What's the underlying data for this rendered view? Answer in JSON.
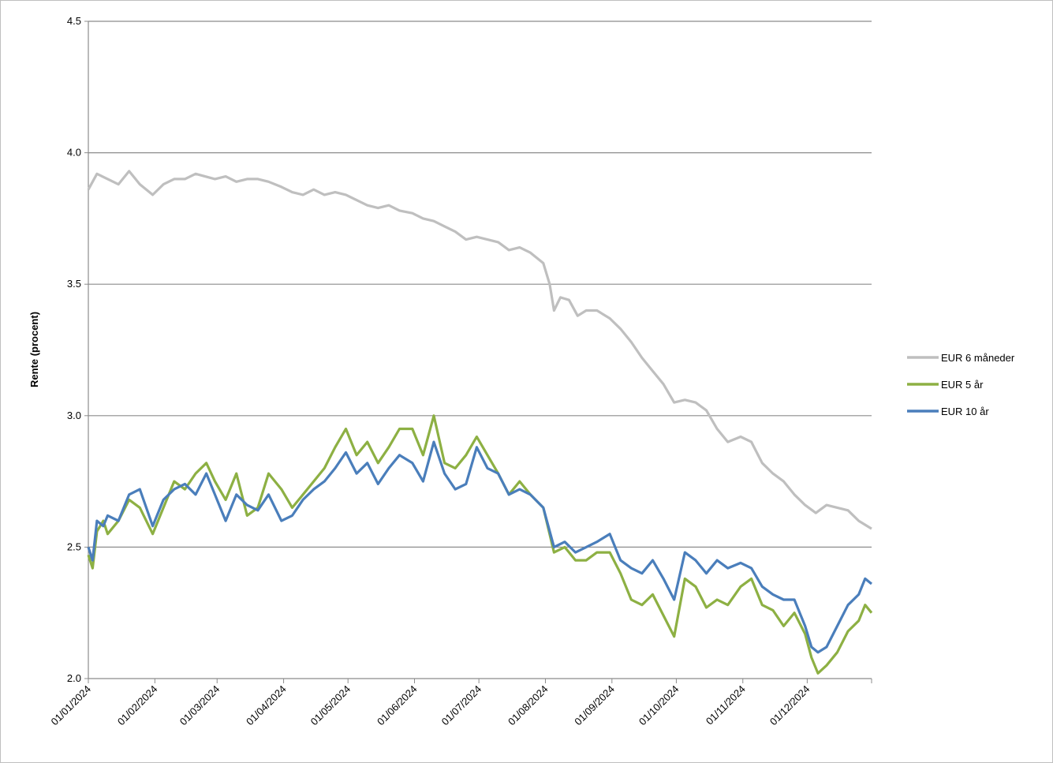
{
  "chart_data": {
    "type": "line",
    "title": "",
    "xlabel": "",
    "ylabel": "Rente (procent)",
    "ylim": [
      2.0,
      4.5
    ],
    "yticks": [
      "2.0",
      "2.5",
      "3.0",
      "3.5",
      "4.0",
      "4.5"
    ],
    "xlim": [
      "2024-01-01",
      "2024-12-31"
    ],
    "xticks": [
      "01/01/2024",
      "01/02/2024",
      "01/03/2024",
      "01/04/2024",
      "01/05/2024",
      "01/06/2024",
      "01/07/2024",
      "01/08/2024",
      "01/09/2024",
      "01/10/2024",
      "01/11/2024",
      "01/12/2024"
    ],
    "grid": "horizontal",
    "legend_position": "right",
    "series": [
      {
        "name": "EUR 6 måneder",
        "color": "#bfbfbf",
        "x": [
          "2024-01-01",
          "2024-01-05",
          "2024-01-10",
          "2024-01-15",
          "2024-01-20",
          "2024-01-25",
          "2024-01-31",
          "2024-02-05",
          "2024-02-10",
          "2024-02-15",
          "2024-02-20",
          "2024-02-29",
          "2024-03-05",
          "2024-03-10",
          "2024-03-15",
          "2024-03-20",
          "2024-03-25",
          "2024-03-31",
          "2024-04-05",
          "2024-04-10",
          "2024-04-15",
          "2024-04-20",
          "2024-04-25",
          "2024-04-30",
          "2024-05-05",
          "2024-05-10",
          "2024-05-15",
          "2024-05-20",
          "2024-05-25",
          "2024-05-31",
          "2024-06-05",
          "2024-06-10",
          "2024-06-15",
          "2024-06-20",
          "2024-06-25",
          "2024-06-30",
          "2024-07-05",
          "2024-07-10",
          "2024-07-15",
          "2024-07-20",
          "2024-07-25",
          "2024-07-31",
          "2024-08-03",
          "2024-08-05",
          "2024-08-08",
          "2024-08-12",
          "2024-08-16",
          "2024-08-20",
          "2024-08-25",
          "2024-08-31",
          "2024-09-05",
          "2024-09-10",
          "2024-09-15",
          "2024-09-20",
          "2024-09-25",
          "2024-09-30",
          "2024-10-05",
          "2024-10-10",
          "2024-10-15",
          "2024-10-20",
          "2024-10-25",
          "2024-10-31",
          "2024-11-05",
          "2024-11-10",
          "2024-11-15",
          "2024-11-20",
          "2024-11-25",
          "2024-11-30",
          "2024-12-05",
          "2024-12-10",
          "2024-12-15",
          "2024-12-20",
          "2024-12-25",
          "2024-12-31"
        ],
        "y": [
          3.86,
          3.92,
          3.9,
          3.88,
          3.93,
          3.88,
          3.84,
          3.88,
          3.9,
          3.9,
          3.92,
          3.9,
          3.91,
          3.89,
          3.9,
          3.9,
          3.89,
          3.87,
          3.85,
          3.84,
          3.86,
          3.84,
          3.85,
          3.84,
          3.82,
          3.8,
          3.79,
          3.8,
          3.78,
          3.77,
          3.75,
          3.74,
          3.72,
          3.7,
          3.67,
          3.68,
          3.67,
          3.66,
          3.63,
          3.64,
          3.62,
          3.58,
          3.5,
          3.4,
          3.45,
          3.44,
          3.38,
          3.4,
          3.4,
          3.37,
          3.33,
          3.28,
          3.22,
          3.17,
          3.12,
          3.05,
          3.06,
          3.05,
          3.02,
          2.95,
          2.9,
          2.92,
          2.9,
          2.82,
          2.78,
          2.75,
          2.7,
          2.66,
          2.63,
          2.66,
          2.65,
          2.64,
          2.6,
          2.57
        ]
      },
      {
        "name": "EUR 5 år",
        "color": "#8db043",
        "x": [
          "2024-01-01",
          "2024-01-03",
          "2024-01-05",
          "2024-01-08",
          "2024-01-10",
          "2024-01-15",
          "2024-01-20",
          "2024-01-25",
          "2024-01-31",
          "2024-02-05",
          "2024-02-10",
          "2024-02-15",
          "2024-02-20",
          "2024-02-25",
          "2024-02-29",
          "2024-03-05",
          "2024-03-10",
          "2024-03-15",
          "2024-03-20",
          "2024-03-25",
          "2024-03-31",
          "2024-04-05",
          "2024-04-10",
          "2024-04-15",
          "2024-04-20",
          "2024-04-25",
          "2024-04-30",
          "2024-05-05",
          "2024-05-10",
          "2024-05-15",
          "2024-05-20",
          "2024-05-25",
          "2024-05-31",
          "2024-06-05",
          "2024-06-10",
          "2024-06-15",
          "2024-06-20",
          "2024-06-25",
          "2024-06-30",
          "2024-07-05",
          "2024-07-10",
          "2024-07-15",
          "2024-07-20",
          "2024-07-25",
          "2024-07-31",
          "2024-08-05",
          "2024-08-10",
          "2024-08-15",
          "2024-08-20",
          "2024-08-25",
          "2024-08-31",
          "2024-09-05",
          "2024-09-10",
          "2024-09-15",
          "2024-09-20",
          "2024-09-25",
          "2024-09-30",
          "2024-10-05",
          "2024-10-10",
          "2024-10-15",
          "2024-10-20",
          "2024-10-25",
          "2024-10-31",
          "2024-11-05",
          "2024-11-10",
          "2024-11-15",
          "2024-11-20",
          "2024-11-25",
          "2024-11-30",
          "2024-12-03",
          "2024-12-06",
          "2024-12-10",
          "2024-12-15",
          "2024-12-20",
          "2024-12-25",
          "2024-12-28",
          "2024-12-31"
        ],
        "y": [
          2.47,
          2.42,
          2.56,
          2.6,
          2.55,
          2.6,
          2.68,
          2.65,
          2.55,
          2.65,
          2.75,
          2.72,
          2.78,
          2.82,
          2.75,
          2.68,
          2.78,
          2.62,
          2.65,
          2.78,
          2.72,
          2.65,
          2.7,
          2.75,
          2.8,
          2.88,
          2.95,
          2.85,
          2.9,
          2.82,
          2.88,
          2.95,
          2.95,
          2.85,
          3.0,
          2.82,
          2.8,
          2.85,
          2.92,
          2.85,
          2.78,
          2.7,
          2.75,
          2.7,
          2.65,
          2.48,
          2.5,
          2.45,
          2.45,
          2.48,
          2.48,
          2.4,
          2.3,
          2.28,
          2.32,
          2.24,
          2.16,
          2.38,
          2.35,
          2.27,
          2.3,
          2.28,
          2.35,
          2.38,
          2.28,
          2.26,
          2.2,
          2.25,
          2.17,
          2.08,
          2.02,
          2.05,
          2.1,
          2.18,
          2.22,
          2.28,
          2.25
        ]
      },
      {
        "name": "EUR 10 år",
        "color": "#4a7ebb",
        "x": [
          "2024-01-01",
          "2024-01-03",
          "2024-01-05",
          "2024-01-08",
          "2024-01-10",
          "2024-01-15",
          "2024-01-20",
          "2024-01-25",
          "2024-01-31",
          "2024-02-05",
          "2024-02-10",
          "2024-02-15",
          "2024-02-20",
          "2024-02-25",
          "2024-02-29",
          "2024-03-05",
          "2024-03-10",
          "2024-03-15",
          "2024-03-20",
          "2024-03-25",
          "2024-03-31",
          "2024-04-05",
          "2024-04-10",
          "2024-04-15",
          "2024-04-20",
          "2024-04-25",
          "2024-04-30",
          "2024-05-05",
          "2024-05-10",
          "2024-05-15",
          "2024-05-20",
          "2024-05-25",
          "2024-05-31",
          "2024-06-05",
          "2024-06-10",
          "2024-06-15",
          "2024-06-20",
          "2024-06-25",
          "2024-06-30",
          "2024-07-05",
          "2024-07-10",
          "2024-07-15",
          "2024-07-20",
          "2024-07-25",
          "2024-07-31",
          "2024-08-05",
          "2024-08-10",
          "2024-08-15",
          "2024-08-20",
          "2024-08-25",
          "2024-08-31",
          "2024-09-05",
          "2024-09-10",
          "2024-09-15",
          "2024-09-20",
          "2024-09-25",
          "2024-09-30",
          "2024-10-05",
          "2024-10-10",
          "2024-10-15",
          "2024-10-20",
          "2024-10-25",
          "2024-10-31",
          "2024-11-05",
          "2024-11-10",
          "2024-11-15",
          "2024-11-20",
          "2024-11-25",
          "2024-11-30",
          "2024-12-03",
          "2024-12-06",
          "2024-12-10",
          "2024-12-15",
          "2024-12-20",
          "2024-12-25",
          "2024-12-28",
          "2024-12-31"
        ],
        "y": [
          2.5,
          2.45,
          2.6,
          2.58,
          2.62,
          2.6,
          2.7,
          2.72,
          2.58,
          2.68,
          2.72,
          2.74,
          2.7,
          2.78,
          2.7,
          2.6,
          2.7,
          2.66,
          2.64,
          2.7,
          2.6,
          2.62,
          2.68,
          2.72,
          2.75,
          2.8,
          2.86,
          2.78,
          2.82,
          2.74,
          2.8,
          2.85,
          2.82,
          2.75,
          2.9,
          2.78,
          2.72,
          2.74,
          2.88,
          2.8,
          2.78,
          2.7,
          2.72,
          2.7,
          2.65,
          2.5,
          2.52,
          2.48,
          2.5,
          2.52,
          2.55,
          2.45,
          2.42,
          2.4,
          2.45,
          2.38,
          2.3,
          2.48,
          2.45,
          2.4,
          2.45,
          2.42,
          2.44,
          2.42,
          2.35,
          2.32,
          2.3,
          2.3,
          2.2,
          2.12,
          2.1,
          2.12,
          2.2,
          2.28,
          2.32,
          2.38,
          2.36
        ]
      }
    ]
  }
}
